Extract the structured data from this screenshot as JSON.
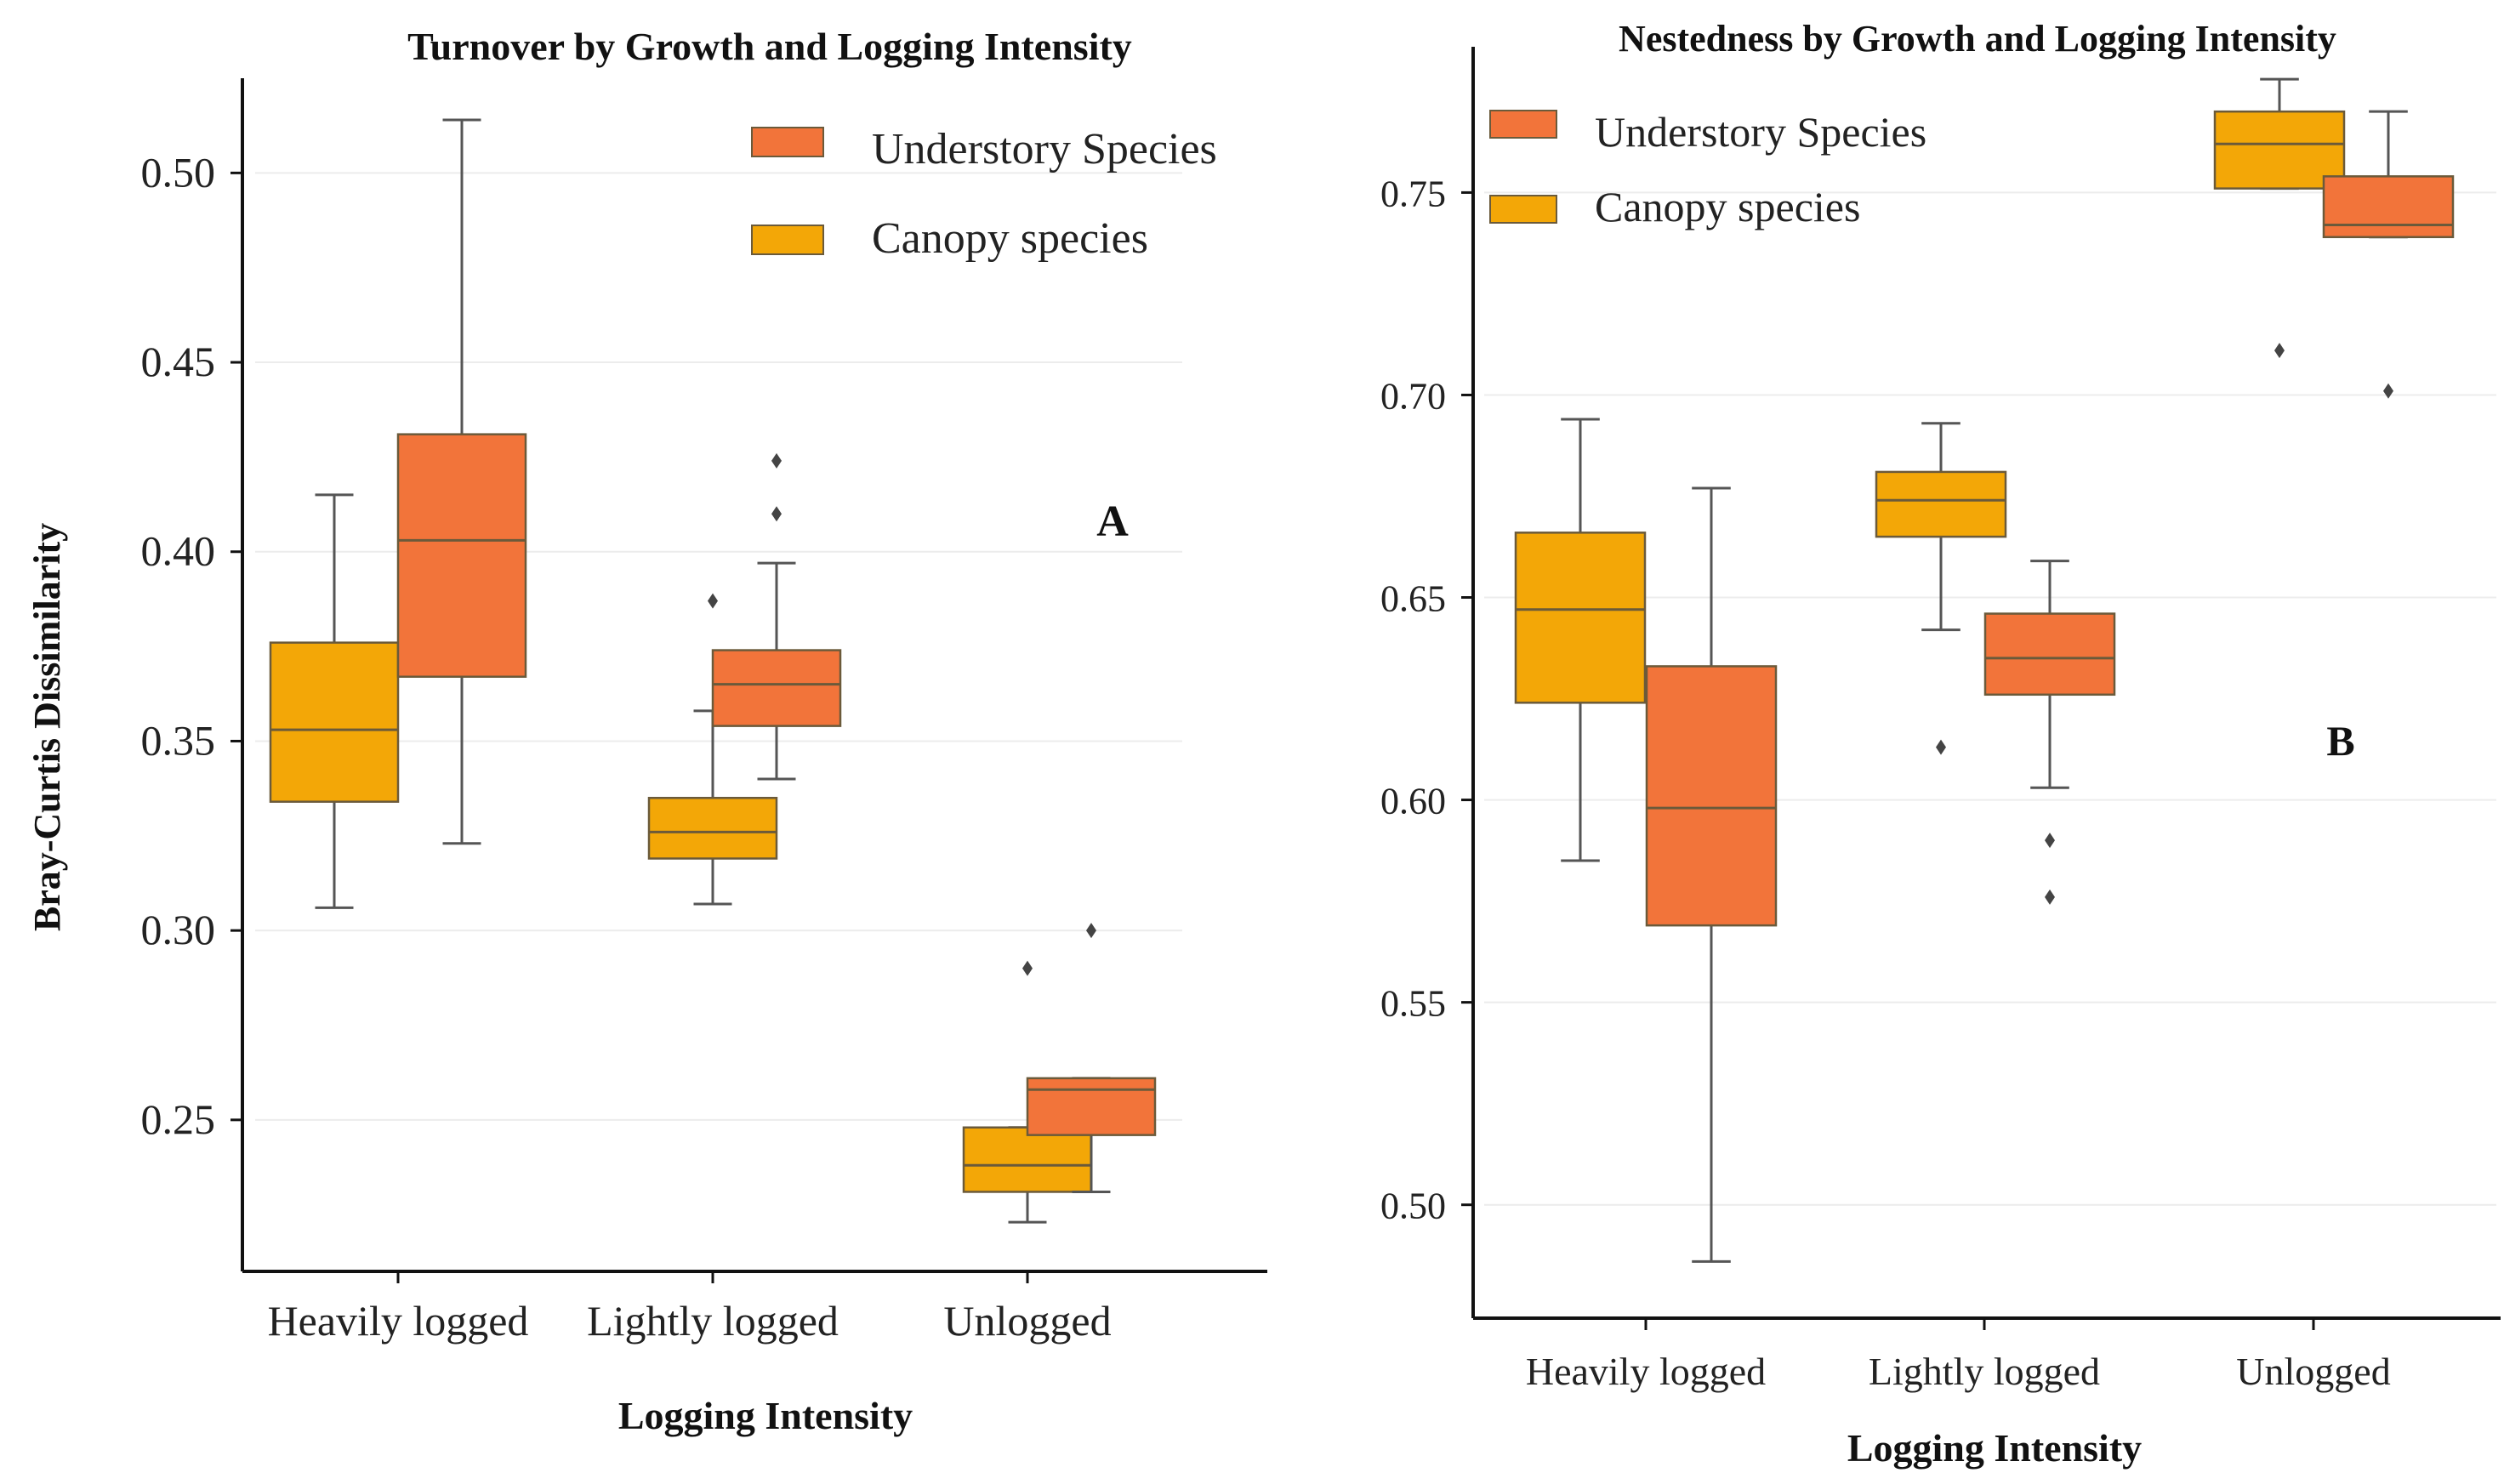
{
  "colors": {
    "canopy": "#F3A707",
    "understory": "#F2743A",
    "edge": "#6b5a3a",
    "whisker": "#555555",
    "grid": "#ececec",
    "axis": "#111111"
  },
  "chart_data": [
    {
      "type": "box",
      "id": "A",
      "panel_label": "A",
      "title": "Turnover by Growth and Logging Intensity",
      "xlabel": "Logging Intensity",
      "ylabel": "Bray-Curtis Dissimilarity",
      "ylim": [
        0.21,
        0.525
      ],
      "yticks": [
        0.25,
        0.3,
        0.35,
        0.4,
        0.45,
        0.5
      ],
      "ytick_labels": [
        "0.25",
        "0.30",
        "0.35",
        "0.40",
        "0.45",
        "0.50"
      ],
      "categories": [
        "Heavily logged",
        "Lightly logged",
        "Unlogged"
      ],
      "legend": [
        {
          "name": "Understory Species",
          "color_key": "understory"
        },
        {
          "name": "Canopy species",
          "color_key": "canopy"
        }
      ],
      "series": [
        {
          "name": "Canopy species",
          "color_key": "canopy",
          "boxes": [
            {
              "min": 0.306,
              "q1": 0.334,
              "median": 0.353,
              "q3": 0.376,
              "max": 0.415,
              "outliers": []
            },
            {
              "min": 0.307,
              "q1": 0.319,
              "median": 0.326,
              "q3": 0.335,
              "max": 0.358,
              "outliers": [
                0.387
              ]
            },
            {
              "min": 0.223,
              "q1": 0.231,
              "median": 0.238,
              "q3": 0.248,
              "max": 0.248,
              "outliers": [
                0.29
              ]
            }
          ]
        },
        {
          "name": "Understory Species",
          "color_key": "understory",
          "boxes": [
            {
              "min": 0.323,
              "q1": 0.367,
              "median": 0.403,
              "q3": 0.431,
              "max": 0.514,
              "outliers": []
            },
            {
              "min": 0.34,
              "q1": 0.354,
              "median": 0.365,
              "q3": 0.374,
              "max": 0.397,
              "outliers": [
                0.41,
                0.424
              ]
            },
            {
              "min": 0.231,
              "q1": 0.246,
              "median": 0.258,
              "q3": 0.261,
              "max": 0.261,
              "outliers": [
                0.3
              ]
            }
          ]
        }
      ]
    },
    {
      "type": "box",
      "id": "B",
      "panel_label": "B",
      "title": "Nestedness by Growth and Logging Intensity",
      "xlabel": "Logging Intensity",
      "ylabel": "",
      "ylim": [
        0.472,
        0.786
      ],
      "yticks": [
        0.5,
        0.55,
        0.6,
        0.65,
        0.7,
        0.75
      ],
      "ytick_labels": [
        "0.50",
        "0.55",
        "0.60",
        "0.65",
        "0.70",
        "0.75"
      ],
      "categories": [
        "Heavily logged",
        "Lightly logged",
        "Unlogged"
      ],
      "legend": [
        {
          "name": "Understory Species",
          "color_key": "understory"
        },
        {
          "name": "Canopy species",
          "color_key": "canopy"
        }
      ],
      "series": [
        {
          "name": "Canopy species",
          "color_key": "canopy",
          "boxes": [
            {
              "min": 0.585,
              "q1": 0.624,
              "median": 0.647,
              "q3": 0.666,
              "max": 0.694,
              "outliers": []
            },
            {
              "min": 0.642,
              "q1": 0.665,
              "median": 0.674,
              "q3": 0.681,
              "max": 0.693,
              "outliers": [
                0.613
              ]
            },
            {
              "min": 0.751,
              "q1": 0.751,
              "median": 0.762,
              "q3": 0.77,
              "max": 0.778,
              "outliers": [
                0.711
              ]
            }
          ]
        },
        {
          "name": "Understory Species",
          "color_key": "understory",
          "boxes": [
            {
              "min": 0.486,
              "q1": 0.569,
              "median": 0.598,
              "q3": 0.633,
              "max": 0.677,
              "outliers": []
            },
            {
              "min": 0.603,
              "q1": 0.626,
              "median": 0.635,
              "q3": 0.646,
              "max": 0.659,
              "outliers": [
                0.59,
                0.576
              ]
            },
            {
              "min": 0.739,
              "q1": 0.739,
              "median": 0.742,
              "q3": 0.754,
              "max": 0.77,
              "outliers": [
                0.701
              ]
            }
          ]
        }
      ]
    }
  ]
}
